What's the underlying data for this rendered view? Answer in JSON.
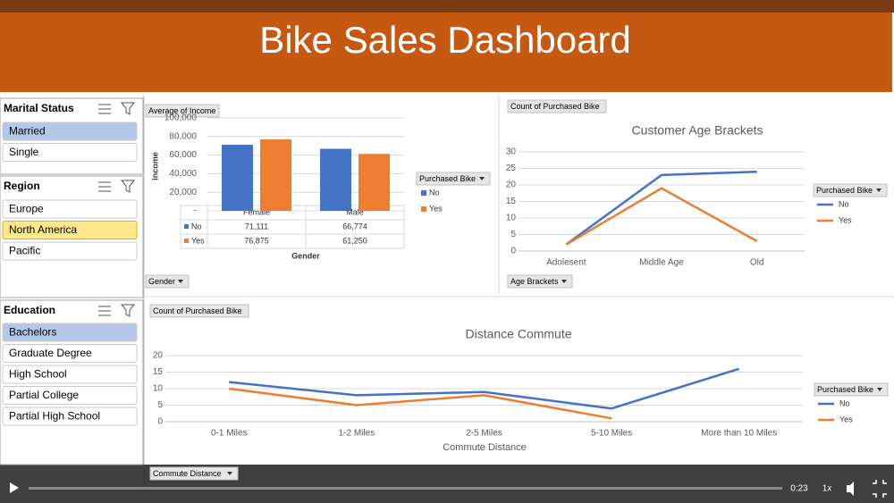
{
  "header": {
    "title": "Bike Sales Dashboard"
  },
  "slicers": [
    {
      "title": "Marital Status",
      "items": [
        "Married",
        "Single"
      ],
      "states": [
        "selected",
        "none"
      ]
    },
    {
      "title": "Region",
      "items": [
        "Europe",
        "North America",
        "Pacific"
      ],
      "states": [
        "none",
        "hover",
        "none"
      ]
    },
    {
      "title": "Education",
      "items": [
        "Bachelors",
        "Graduate Degree",
        "High School",
        "Partial College",
        "Partial High School"
      ],
      "states": [
        "selected",
        "none",
        "none",
        "none",
        "none"
      ]
    }
  ],
  "chart_data": [
    {
      "type": "bar",
      "field_button": "Average of Income",
      "axis_button": "Gender",
      "ylabel": "income",
      "xlabel": "Gender",
      "legend_title": "Purchased Bike",
      "categories": [
        "Female",
        "Male"
      ],
      "series": [
        {
          "name": "No",
          "color": "#4472c4",
          "values": [
            71111,
            66774
          ],
          "value_labels": [
            "71,111",
            "66,774"
          ]
        },
        {
          "name": "Yes",
          "color": "#ed7d31",
          "values": [
            76875,
            61250
          ],
          "value_labels": [
            "76,875",
            "61,250"
          ]
        }
      ],
      "ylim": [
        0,
        100000
      ],
      "yticks": [
        {
          "value": 0,
          "label": "-"
        },
        {
          "value": 20000,
          "label": "20,000"
        },
        {
          "value": 40000,
          "label": "40,000"
        },
        {
          "value": 60000,
          "label": "60,000"
        },
        {
          "value": 80000,
          "label": "80,000"
        },
        {
          "value": 100000,
          "label": "100,000"
        }
      ],
      "grid": true
    },
    {
      "type": "line",
      "title": "Customer Age Brackets",
      "field_button": "Count of Purchased Bike",
      "axis_button": "Age Brackets",
      "legend_title": "Purchased Bike",
      "categories": [
        "Adolesent",
        "Middle Age",
        "Old"
      ],
      "series": [
        {
          "name": "No",
          "color": "#4472c4",
          "values": [
            2,
            23,
            24
          ]
        },
        {
          "name": "Yes",
          "color": "#ed7d31",
          "values": [
            2,
            19,
            3
          ]
        }
      ],
      "ylim": [
        0,
        30
      ],
      "yticks": [
        0,
        5,
        10,
        15,
        20,
        25,
        30
      ],
      "grid": true
    },
    {
      "type": "line",
      "title": "Distance Commute",
      "field_button": "Count of Purchased Bike",
      "axis_button": "Commute Distance",
      "xlabel": "Commute Distance",
      "legend_title": "Purchased Bike",
      "categories": [
        "0-1 Miles",
        "1-2 Miles",
        "2-5 Miles",
        "5-10 Miles",
        "More than 10 Miles"
      ],
      "series": [
        {
          "name": "No",
          "color": "#4472c4",
          "values": [
            12,
            8,
            9,
            4,
            16
          ]
        },
        {
          "name": "Yes",
          "color": "#ed7d31",
          "values": [
            10,
            5,
            8,
            1,
            null
          ]
        }
      ],
      "ylim": [
        0,
        20
      ],
      "yticks": [
        0,
        5,
        10,
        15,
        20
      ],
      "grid": true
    }
  ],
  "player": {
    "time": "0:23",
    "speed": "1x"
  }
}
